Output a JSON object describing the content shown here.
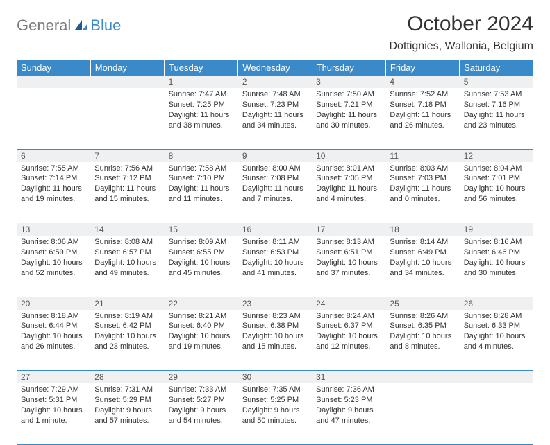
{
  "logo": {
    "general": "General",
    "blue": "Blue"
  },
  "header": {
    "month_title": "October 2024",
    "location": "Dottignies, Wallonia, Belgium"
  },
  "weekdays": [
    "Sunday",
    "Monday",
    "Tuesday",
    "Wednesday",
    "Thursday",
    "Friday",
    "Saturday"
  ],
  "weeks": [
    {
      "nums": [
        "",
        "",
        "1",
        "2",
        "3",
        "4",
        "5"
      ],
      "cells": [
        {
          "sr": "",
          "ss": "",
          "dl": ""
        },
        {
          "sr": "",
          "ss": "",
          "dl": ""
        },
        {
          "sr": "Sunrise: 7:47 AM",
          "ss": "Sunset: 7:25 PM",
          "dl": "Daylight: 11 hours and 38 minutes."
        },
        {
          "sr": "Sunrise: 7:48 AM",
          "ss": "Sunset: 7:23 PM",
          "dl": "Daylight: 11 hours and 34 minutes."
        },
        {
          "sr": "Sunrise: 7:50 AM",
          "ss": "Sunset: 7:21 PM",
          "dl": "Daylight: 11 hours and 30 minutes."
        },
        {
          "sr": "Sunrise: 7:52 AM",
          "ss": "Sunset: 7:18 PM",
          "dl": "Daylight: 11 hours and 26 minutes."
        },
        {
          "sr": "Sunrise: 7:53 AM",
          "ss": "Sunset: 7:16 PM",
          "dl": "Daylight: 11 hours and 23 minutes."
        }
      ]
    },
    {
      "nums": [
        "6",
        "7",
        "8",
        "9",
        "10",
        "11",
        "12"
      ],
      "cells": [
        {
          "sr": "Sunrise: 7:55 AM",
          "ss": "Sunset: 7:14 PM",
          "dl": "Daylight: 11 hours and 19 minutes."
        },
        {
          "sr": "Sunrise: 7:56 AM",
          "ss": "Sunset: 7:12 PM",
          "dl": "Daylight: 11 hours and 15 minutes."
        },
        {
          "sr": "Sunrise: 7:58 AM",
          "ss": "Sunset: 7:10 PM",
          "dl": "Daylight: 11 hours and 11 minutes."
        },
        {
          "sr": "Sunrise: 8:00 AM",
          "ss": "Sunset: 7:08 PM",
          "dl": "Daylight: 11 hours and 7 minutes."
        },
        {
          "sr": "Sunrise: 8:01 AM",
          "ss": "Sunset: 7:05 PM",
          "dl": "Daylight: 11 hours and 4 minutes."
        },
        {
          "sr": "Sunrise: 8:03 AM",
          "ss": "Sunset: 7:03 PM",
          "dl": "Daylight: 11 hours and 0 minutes."
        },
        {
          "sr": "Sunrise: 8:04 AM",
          "ss": "Sunset: 7:01 PM",
          "dl": "Daylight: 10 hours and 56 minutes."
        }
      ]
    },
    {
      "nums": [
        "13",
        "14",
        "15",
        "16",
        "17",
        "18",
        "19"
      ],
      "cells": [
        {
          "sr": "Sunrise: 8:06 AM",
          "ss": "Sunset: 6:59 PM",
          "dl": "Daylight: 10 hours and 52 minutes."
        },
        {
          "sr": "Sunrise: 8:08 AM",
          "ss": "Sunset: 6:57 PM",
          "dl": "Daylight: 10 hours and 49 minutes."
        },
        {
          "sr": "Sunrise: 8:09 AM",
          "ss": "Sunset: 6:55 PM",
          "dl": "Daylight: 10 hours and 45 minutes."
        },
        {
          "sr": "Sunrise: 8:11 AM",
          "ss": "Sunset: 6:53 PM",
          "dl": "Daylight: 10 hours and 41 minutes."
        },
        {
          "sr": "Sunrise: 8:13 AM",
          "ss": "Sunset: 6:51 PM",
          "dl": "Daylight: 10 hours and 37 minutes."
        },
        {
          "sr": "Sunrise: 8:14 AM",
          "ss": "Sunset: 6:49 PM",
          "dl": "Daylight: 10 hours and 34 minutes."
        },
        {
          "sr": "Sunrise: 8:16 AM",
          "ss": "Sunset: 6:46 PM",
          "dl": "Daylight: 10 hours and 30 minutes."
        }
      ]
    },
    {
      "nums": [
        "20",
        "21",
        "22",
        "23",
        "24",
        "25",
        "26"
      ],
      "cells": [
        {
          "sr": "Sunrise: 8:18 AM",
          "ss": "Sunset: 6:44 PM",
          "dl": "Daylight: 10 hours and 26 minutes."
        },
        {
          "sr": "Sunrise: 8:19 AM",
          "ss": "Sunset: 6:42 PM",
          "dl": "Daylight: 10 hours and 23 minutes."
        },
        {
          "sr": "Sunrise: 8:21 AM",
          "ss": "Sunset: 6:40 PM",
          "dl": "Daylight: 10 hours and 19 minutes."
        },
        {
          "sr": "Sunrise: 8:23 AM",
          "ss": "Sunset: 6:38 PM",
          "dl": "Daylight: 10 hours and 15 minutes."
        },
        {
          "sr": "Sunrise: 8:24 AM",
          "ss": "Sunset: 6:37 PM",
          "dl": "Daylight: 10 hours and 12 minutes."
        },
        {
          "sr": "Sunrise: 8:26 AM",
          "ss": "Sunset: 6:35 PM",
          "dl": "Daylight: 10 hours and 8 minutes."
        },
        {
          "sr": "Sunrise: 8:28 AM",
          "ss": "Sunset: 6:33 PM",
          "dl": "Daylight: 10 hours and 4 minutes."
        }
      ]
    },
    {
      "nums": [
        "27",
        "28",
        "29",
        "30",
        "31",
        "",
        ""
      ],
      "cells": [
        {
          "sr": "Sunrise: 7:29 AM",
          "ss": "Sunset: 5:31 PM",
          "dl": "Daylight: 10 hours and 1 minute."
        },
        {
          "sr": "Sunrise: 7:31 AM",
          "ss": "Sunset: 5:29 PM",
          "dl": "Daylight: 9 hours and 57 minutes."
        },
        {
          "sr": "Sunrise: 7:33 AM",
          "ss": "Sunset: 5:27 PM",
          "dl": "Daylight: 9 hours and 54 minutes."
        },
        {
          "sr": "Sunrise: 7:35 AM",
          "ss": "Sunset: 5:25 PM",
          "dl": "Daylight: 9 hours and 50 minutes."
        },
        {
          "sr": "Sunrise: 7:36 AM",
          "ss": "Sunset: 5:23 PM",
          "dl": "Daylight: 9 hours and 47 minutes."
        },
        {
          "sr": "",
          "ss": "",
          "dl": ""
        },
        {
          "sr": "",
          "ss": "",
          "dl": ""
        }
      ]
    }
  ],
  "colors": {
    "header_bg": "#3a8ac9",
    "daynum_bg": "#eef0f2",
    "text": "#333333"
  }
}
